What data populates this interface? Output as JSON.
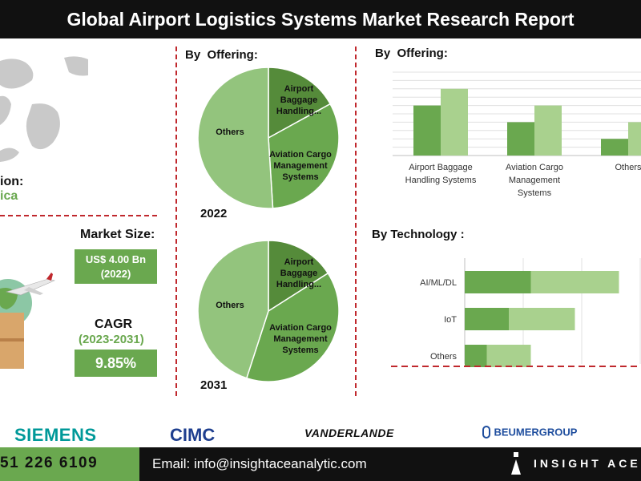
{
  "header": {
    "title": "Global Airport Logistics Systems Market Research Report"
  },
  "left_panel": {
    "region_label": "ion:",
    "region_value": "ica",
    "market_size_label": "Market Size:",
    "market_size_value": "US$ 4.00 Bn",
    "market_size_year": "(2022)",
    "cagr_label": "CAGR",
    "cagr_period": "(2023-2031)",
    "cagr_value": "9.85%"
  },
  "pie_section": {
    "heading": "By  Offering:",
    "year_top": "2022",
    "year_bottom": "2031"
  },
  "colors": {
    "dark_green": "#558b3a",
    "mid_green": "#6aa84f",
    "light_green": "#93c47d",
    "pale_green": "#a9d18e",
    "accent_red": "#c0282d",
    "light_text_green": "#6aa84f"
  },
  "chart_data": [
    {
      "type": "pie",
      "title": "By  Offering:",
      "year": "2022",
      "slices": [
        {
          "label": "Airport Baggage Handling...",
          "value": 17
        },
        {
          "label": "Aviation Cargo Management Systems",
          "value": 32
        },
        {
          "label": "Others",
          "value": 51
        }
      ]
    },
    {
      "type": "pie",
      "title": "",
      "year": "2031",
      "slices": [
        {
          "label": "Airport Baggage Handling...",
          "value": 16
        },
        {
          "label": "Aviation Cargo Management Systems",
          "value": 39
        },
        {
          "label": "Others",
          "value": 45
        }
      ]
    },
    {
      "type": "bar",
      "title": "By  Offering:",
      "categories": [
        "Airport Baggage Handling Systems",
        "Aviation Cargo Management Systems",
        "Others"
      ],
      "series": [
        {
          "values": [
            30,
            20,
            10
          ]
        },
        {
          "values": [
            40,
            30,
            20
          ]
        }
      ],
      "ylim": [
        0,
        50
      ],
      "grid": true
    },
    {
      "type": "bar",
      "orientation": "horizontal",
      "stacked": true,
      "title": "By Technology :",
      "categories": [
        "AI/ML/DL",
        "IoT",
        "Others"
      ],
      "series": [
        {
          "values": [
            30,
            20,
            10
          ]
        },
        {
          "values": [
            40,
            30,
            20
          ]
        }
      ],
      "xlim": [
        0,
        80
      ],
      "grid": true
    }
  ],
  "footer": {
    "logos": [
      "SIEMENS",
      "CIMC",
      "VANDERLANDE",
      "BEUMERGROUP"
    ],
    "phone": "51 226 6109",
    "email": "Email: info@insightaceanalytic.com",
    "brand": "INSIGHT ACE"
  }
}
